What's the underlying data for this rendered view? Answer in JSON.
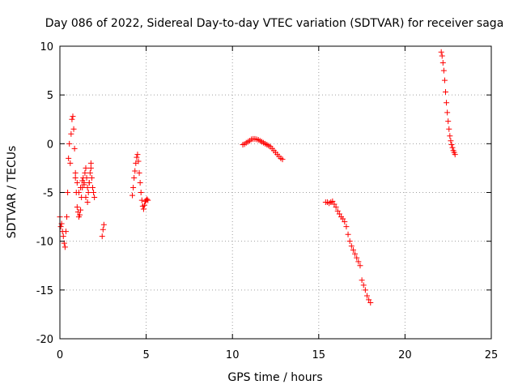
{
  "chart_data": {
    "type": "scatter",
    "title": "Day 086 of 2022, Sidereal Day-to-day VTEC variation (SDTVAR) for receiver saga",
    "xlabel": "GPS time / hours",
    "ylabel": "SDTVAR / TECUs",
    "xlim": [
      0,
      25
    ],
    "ylim": [
      -20,
      10
    ],
    "x_ticks": [
      0,
      5,
      10,
      15,
      20,
      25
    ],
    "y_ticks": [
      -20,
      -15,
      -10,
      -5,
      0,
      5,
      10
    ],
    "x_tick_labels": [
      "0",
      "5",
      "10",
      "15",
      "20",
      "25"
    ],
    "y_tick_labels": [
      "-20",
      "-15",
      "-10",
      "-5",
      "0",
      "5",
      "10"
    ],
    "grid": true,
    "marker": "+",
    "color": "#ff0000",
    "segments": [
      {
        "name": "segment-1",
        "x": [
          0.0,
          0.05,
          0.1,
          0.15,
          0.2,
          0.25,
          0.3,
          0.35,
          0.4,
          0.45,
          0.5,
          0.55,
          0.6,
          0.65,
          0.7,
          0.75,
          0.8,
          0.85,
          0.9,
          0.95,
          1.0,
          1.05,
          1.1,
          1.15,
          1.2,
          1.25,
          1.3,
          1.35,
          1.4,
          1.45,
          1.5,
          1.55,
          1.6,
          1.65,
          1.7,
          1.75,
          1.8,
          1.85,
          1.9,
          1.95,
          2.0
        ],
        "y": [
          -7.5,
          -8.5,
          -8.2,
          -9.0,
          -9.5,
          -10.2,
          -10.6,
          -9.0,
          -7.5,
          -5.0,
          -1.5,
          0.0,
          -2.0,
          1.0,
          2.5,
          2.8,
          1.5,
          -0.5,
          -3.0,
          -5.0,
          -6.5,
          -7.0,
          -7.5,
          -7.3,
          -6.8,
          -5.5,
          -4.5,
          -3.5,
          -4.0,
          -3.0,
          -2.5,
          -3.5,
          -4.5,
          -5.0,
          -4.0,
          -3.0,
          -2.0,
          -3.5,
          -4.5,
          -5.0,
          -5.5
        ]
      },
      {
        "name": "segment-2",
        "x": [
          0.9,
          1.0,
          1.1,
          1.2,
          1.3,
          1.4,
          1.5,
          1.6,
          1.7,
          1.8
        ],
        "y": [
          -3.5,
          -4.0,
          -5.0,
          -4.5,
          -3.8,
          -4.2,
          -5.5,
          -6.0,
          -4.0,
          -2.5
        ]
      },
      {
        "name": "segment-3",
        "x": [
          2.45,
          2.5,
          2.55
        ],
        "y": [
          -9.5,
          -8.8,
          -8.3
        ]
      },
      {
        "name": "segment-4",
        "x": [
          4.2,
          4.25,
          4.3,
          4.35,
          4.4,
          4.45,
          4.5,
          4.55,
          4.6,
          4.65,
          4.7,
          4.75,
          4.8,
          4.85,
          4.9,
          4.95,
          5.0,
          5.05,
          5.1
        ],
        "y": [
          -5.3,
          -4.5,
          -3.5,
          -2.8,
          -2.0,
          -1.4,
          -1.1,
          -1.8,
          -3.0,
          -4.0,
          -5.0,
          -5.8,
          -6.4,
          -6.7,
          -6.3,
          -5.9,
          -5.8,
          -5.7,
          -5.8
        ]
      },
      {
        "name": "segment-5",
        "x": [
          10.6,
          10.7,
          10.8,
          10.9,
          11.0,
          11.1,
          11.2,
          11.3,
          11.4,
          11.5,
          11.6,
          11.7,
          11.8,
          11.9,
          12.0,
          12.1,
          12.2,
          12.3,
          12.4,
          12.5,
          12.6,
          12.7,
          12.8,
          12.9
        ],
        "y": [
          -0.1,
          -0.05,
          0.1,
          0.2,
          0.3,
          0.45,
          0.5,
          0.5,
          0.45,
          0.4,
          0.3,
          0.2,
          0.1,
          0.0,
          -0.1,
          -0.2,
          -0.3,
          -0.5,
          -0.7,
          -0.9,
          -1.1,
          -1.3,
          -1.5,
          -1.6
        ]
      },
      {
        "name": "segment-6",
        "x": [
          15.4,
          15.5,
          15.6,
          15.7,
          15.8,
          15.9,
          16.0,
          16.1,
          16.2,
          16.3,
          16.4,
          16.5,
          16.6,
          16.7,
          16.8,
          16.9,
          17.0,
          17.1,
          17.2,
          17.3,
          17.4,
          17.5,
          17.6,
          17.7,
          17.8,
          17.9,
          18.0
        ],
        "y": [
          -6.0,
          -6.0,
          -6.1,
          -6.0,
          -5.9,
          -6.2,
          -6.5,
          -6.9,
          -7.2,
          -7.5,
          -7.7,
          -8.0,
          -8.5,
          -9.3,
          -10.0,
          -10.5,
          -10.9,
          -11.3,
          -11.7,
          -12.1,
          -12.5,
          -14.0,
          -14.5,
          -15.0,
          -15.6,
          -16.0,
          -16.3
        ]
      },
      {
        "name": "segment-7",
        "x": [
          22.1,
          22.15,
          22.2,
          22.25,
          22.3,
          22.35,
          22.4,
          22.45,
          22.5,
          22.55,
          22.6,
          22.65,
          22.7,
          22.75,
          22.8,
          22.85,
          22.9
        ],
        "y": [
          9.4,
          9.0,
          8.3,
          7.5,
          6.5,
          5.3,
          4.2,
          3.2,
          2.3,
          1.5,
          0.8,
          0.3,
          -0.1,
          -0.4,
          -0.7,
          -0.9,
          -1.1
        ]
      }
    ]
  }
}
